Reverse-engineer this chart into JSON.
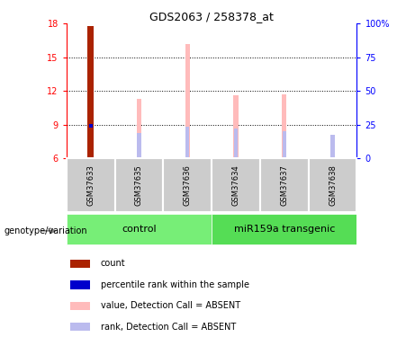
{
  "title": "GDS2063 / 258378_at",
  "samples": [
    "GSM37633",
    "GSM37635",
    "GSM37636",
    "GSM37634",
    "GSM37637",
    "GSM37638"
  ],
  "ylim_left": [
    6,
    18
  ],
  "ylim_right": [
    0,
    100
  ],
  "yticks_left": [
    6,
    9,
    12,
    15,
    18
  ],
  "yticks_right": [
    0,
    25,
    50,
    75,
    100
  ],
  "ytick_labels_right": [
    "0",
    "25",
    "50",
    "75",
    "100%"
  ],
  "bar_data": {
    "GSM37633": {
      "count": 17.8,
      "rank": 8.9,
      "value_absent": null,
      "rank_absent": null
    },
    "GSM37635": {
      "count": null,
      "rank": null,
      "value_absent": 11.3,
      "rank_absent": 8.3
    },
    "GSM37636": {
      "count": null,
      "rank": null,
      "value_absent": 16.2,
      "rank_absent": 8.8
    },
    "GSM37634": {
      "count": null,
      "rank": null,
      "value_absent": 11.6,
      "rank_absent": 8.7
    },
    "GSM37637": {
      "count": null,
      "rank": null,
      "value_absent": 11.7,
      "rank_absent": 8.4
    },
    "GSM37638": {
      "count": null,
      "rank": null,
      "value_absent": 7.9,
      "rank_absent": 8.1
    }
  },
  "bar_bottom": 6,
  "count_bar_width": 0.12,
  "value_bar_width": 0.1,
  "rank_bar_width": 0.08,
  "color_count": "#aa2200",
  "color_rank": "#0000cc",
  "color_value_absent": "#ffbbbb",
  "color_rank_absent": "#bbbbee",
  "group_color_control": "#77ee77",
  "group_color_transgenic": "#55dd55",
  "group_bg_color": "#cccccc",
  "group_label_control": "control",
  "group_label_transgenic": "miR159a transgenic",
  "genotype_label": "genotype/variation",
  "legend_items": [
    {
      "label": "count",
      "color": "#aa2200"
    },
    {
      "label": "percentile rank within the sample",
      "color": "#0000cc"
    },
    {
      "label": "value, Detection Call = ABSENT",
      "color": "#ffbbbb"
    },
    {
      "label": "rank, Detection Call = ABSENT",
      "color": "#bbbbee"
    }
  ],
  "n_control": 3,
  "n_transgenic": 3
}
